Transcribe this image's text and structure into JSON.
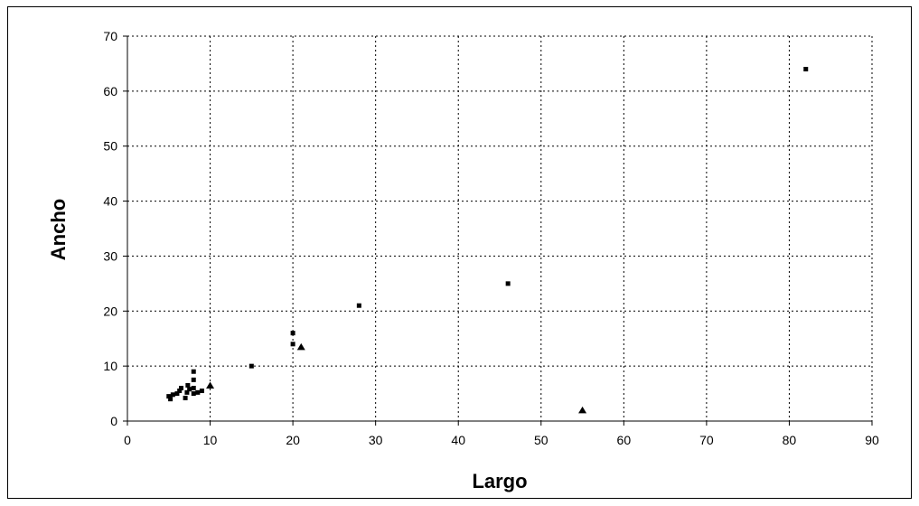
{
  "chart_data": {
    "type": "scatter",
    "title": "",
    "xlabel": "Largo",
    "ylabel": "Ancho",
    "xlim": [
      0,
      90
    ],
    "ylim": [
      0,
      70
    ],
    "x_ticks": [
      0,
      10,
      20,
      30,
      40,
      50,
      60,
      70,
      80,
      90
    ],
    "y_ticks": [
      0,
      10,
      20,
      30,
      40,
      50,
      60,
      70
    ],
    "grid": true,
    "legend": "none",
    "series": [
      {
        "marker": "square",
        "color": "#000000",
        "points": [
          [
            5,
            4.5
          ],
          [
            5.2,
            4
          ],
          [
            5.5,
            4.8
          ],
          [
            6,
            5
          ],
          [
            6.3,
            5.5
          ],
          [
            6.5,
            6
          ],
          [
            7,
            4.2
          ],
          [
            7.2,
            5.2
          ],
          [
            7.3,
            6.5
          ],
          [
            7.5,
            5.8
          ],
          [
            8,
            5
          ],
          [
            8,
            6
          ],
          [
            8,
            7.5
          ],
          [
            8,
            9
          ],
          [
            8.5,
            5.2
          ],
          [
            9,
            5.5
          ],
          [
            15,
            10
          ],
          [
            20,
            14
          ],
          [
            20,
            16
          ],
          [
            28,
            21
          ],
          [
            46,
            25
          ],
          [
            82,
            64
          ]
        ]
      },
      {
        "marker": "triangle",
        "color": "#000000",
        "points": [
          [
            10,
            6.5
          ],
          [
            21,
            13.5
          ],
          [
            55,
            2
          ]
        ]
      }
    ]
  }
}
